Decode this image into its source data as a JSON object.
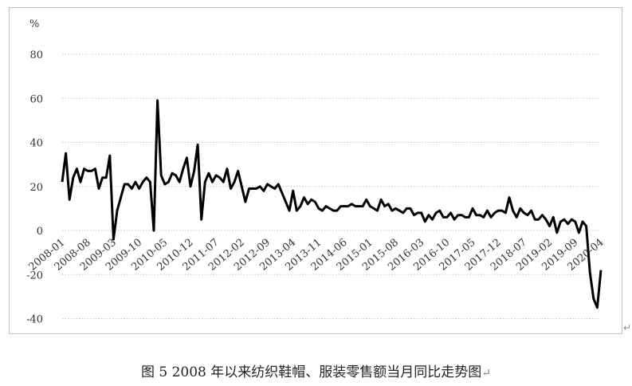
{
  "caption": "图 5  2008 年以来纺织鞋帽、服装零售额当月同比走势图",
  "caption_mark": "↵",
  "side_mark": "↵",
  "chart_data": {
    "type": "line",
    "unit_label": "%",
    "title": "",
    "xlabel": "",
    "ylabel": "",
    "ylim": [
      -40,
      80
    ],
    "yticks": [
      -40,
      -20,
      0,
      20,
      40,
      60,
      80
    ],
    "grid": "horizontal-dotted",
    "legend": "none",
    "line_color": "#000000",
    "x_tick_labels": [
      "2008-01",
      "2008-08",
      "2009-03",
      "2009-10",
      "2010-05",
      "2010-12",
      "2011-07",
      "2012-02",
      "2012-09",
      "2013-04",
      "2013-11",
      "2014-06",
      "2015-01",
      "2015-08",
      "2016-03",
      "2016-10",
      "2017-05",
      "2017-12",
      "2018-07",
      "2019-02",
      "2019-09",
      "2020-04"
    ],
    "x_tick_step_months": 7,
    "series": [
      {
        "start": "2008-01",
        "values": [
          22,
          35,
          14,
          24,
          28,
          22,
          28,
          27,
          27,
          28,
          19,
          24,
          24,
          34,
          -4,
          9,
          15,
          21,
          21,
          19,
          22,
          19,
          22,
          24,
          22,
          0,
          59,
          25,
          21,
          22,
          26,
          25,
          22,
          28,
          33,
          20,
          27,
          39,
          5,
          22,
          26,
          22,
          25,
          24,
          22,
          28,
          19,
          22,
          27,
          20,
          13,
          19,
          19,
          19,
          20,
          18,
          21,
          20,
          19,
          21,
          17,
          13,
          9,
          18,
          9,
          11,
          15,
          12,
          14,
          13,
          10,
          9,
          11,
          10,
          9,
          9,
          11,
          11,
          11,
          12,
          11,
          11,
          11,
          14,
          11,
          10,
          9,
          14,
          11,
          12,
          9,
          10,
          9,
          8,
          10,
          10,
          7,
          8,
          8,
          4,
          7,
          5,
          8,
          9,
          6,
          6,
          8,
          5,
          7,
          7,
          6,
          6,
          10,
          7,
          7,
          6,
          9,
          6,
          8,
          9,
          9,
          8,
          15,
          9,
          6,
          10,
          8,
          7,
          9,
          5,
          5,
          7,
          5,
          2,
          6,
          -1,
          4,
          5,
          3,
          5,
          4,
          -1,
          4,
          2,
          -19,
          -31,
          -35,
          -18
        ]
      }
    ]
  }
}
